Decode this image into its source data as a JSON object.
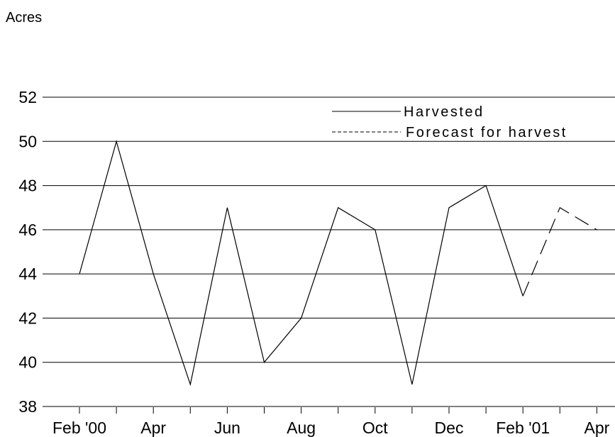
{
  "chart_data": {
    "type": "line",
    "unit_label": "Acres",
    "title": "",
    "xlabel": "",
    "ylabel": "Acres",
    "ylim": [
      38,
      52
    ],
    "yticks": [
      38,
      40,
      42,
      44,
      46,
      48,
      50,
      52
    ],
    "x_tick_labels": [
      "Feb '00",
      "",
      "Apr",
      "",
      "Jun",
      "",
      "Aug",
      "",
      "Oct",
      "",
      "Dec",
      "",
      "Feb '01",
      "",
      "Apr"
    ],
    "months": [
      "Feb 2000",
      "Mar 2000",
      "Apr 2000",
      "May 2000",
      "Jun 2000",
      "Jul 2000",
      "Aug 2000",
      "Sep 2000",
      "Oct 2000",
      "Nov 2000",
      "Dec 2000",
      "Jan 2001",
      "Feb 2001",
      "Mar 2001",
      "Apr 2001"
    ],
    "grid": "horizontal",
    "legend_position": "top-right",
    "series": [
      {
        "name": "Harvested",
        "style": "solid",
        "color": "#000000",
        "x": [
          "Feb 2000",
          "Mar 2000",
          "Apr 2000",
          "May 2000",
          "Jun 2000",
          "Jul 2000",
          "Aug 2000",
          "Sep 2000",
          "Oct 2000",
          "Nov 2000",
          "Dec 2000",
          "Jan 2001",
          "Feb 2001"
        ],
        "values": [
          44,
          50,
          44,
          39,
          47,
          40,
          42,
          47,
          46,
          39,
          47,
          48,
          43
        ]
      },
      {
        "name": "Forecast for harvest",
        "style": "dashed",
        "color": "#000000",
        "x": [
          "Feb 2001",
          "Mar 2001",
          "Apr 2001"
        ],
        "values": [
          43,
          47,
          46
        ]
      }
    ]
  }
}
